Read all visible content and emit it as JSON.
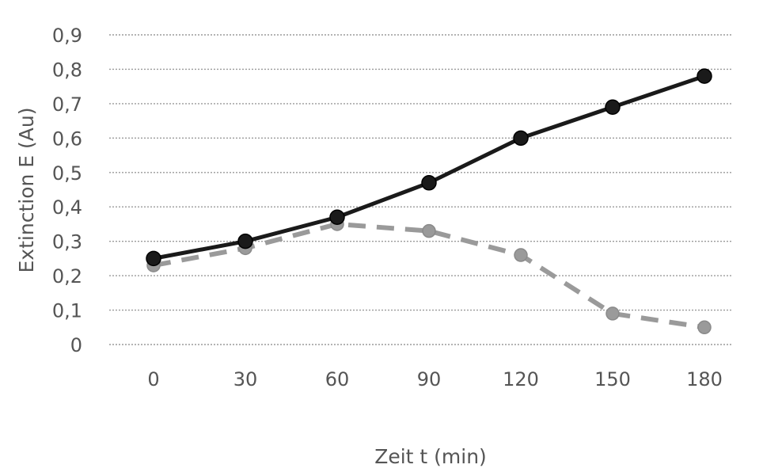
{
  "chart_data": {
    "type": "line",
    "xlabel": "Zeit t (min)",
    "ylabel": "Extinction E (Au)",
    "categories": [
      "0",
      "30",
      "60",
      "90",
      "120",
      "150",
      "180"
    ],
    "y_tick_labels": [
      "0",
      "0,1",
      "0,2",
      "0,3",
      "0,4",
      "0,5",
      "0,6",
      "0,7",
      "0,8",
      "0,9"
    ],
    "ylim": [
      0,
      0.9
    ],
    "grid": true,
    "legend": "none",
    "series": [
      {
        "style": "solid",
        "color": "#1a1a1a",
        "values": [
          0.25,
          0.3,
          0.37,
          0.47,
          0.6,
          0.69,
          0.78
        ]
      },
      {
        "style": "dashed",
        "color": "#9a9a9a",
        "values": [
          0.23,
          0.28,
          0.35,
          0.33,
          0.26,
          0.09,
          0.05
        ]
      }
    ]
  }
}
